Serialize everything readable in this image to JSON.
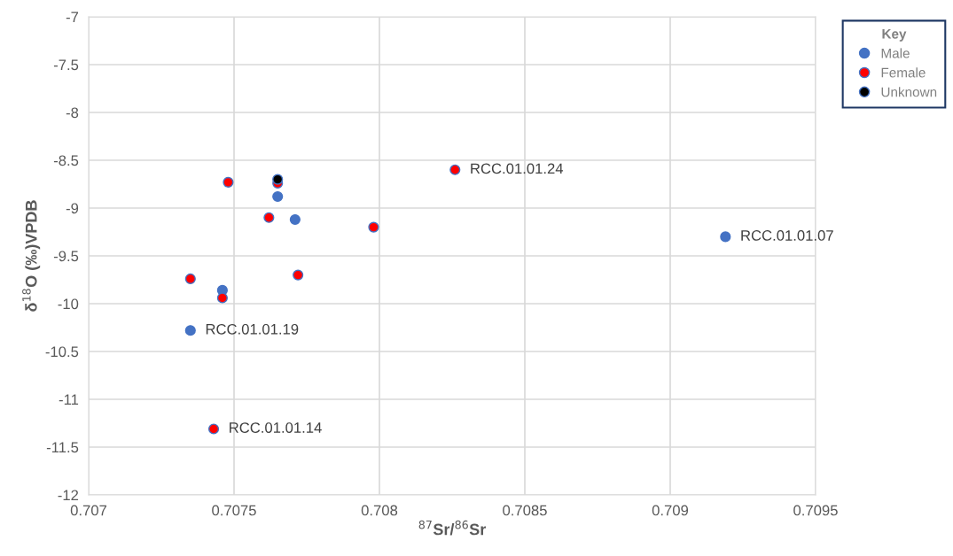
{
  "chart_data": {
    "type": "scatter",
    "xlabel": "$^{87}$Sr/$^{86}$Sr",
    "ylabel": "δ$^{18}$O (‰)VPDB",
    "legend_title": "Key",
    "legend": "right",
    "grid": true,
    "marker": "circle",
    "xlim": [
      0.707,
      0.7095
    ],
    "xticks": [
      0.707,
      0.7075,
      0.708,
      0.7085,
      0.709,
      0.7095
    ],
    "ylim": [
      -12,
      -7
    ],
    "yticks": [
      -12,
      -11.5,
      -11,
      -10.5,
      -10,
      -9.5,
      -9,
      -8.5,
      -8,
      -7.5,
      -7
    ],
    "series": [
      {
        "name": "Male",
        "color": "#4472c4",
        "x": [
          0.70735,
          0.70746,
          0.70765,
          0.70771,
          0.70919
        ],
        "values": [
          -10.28,
          -9.86,
          -8.88,
          -9.12,
          -9.3
        ]
      },
      {
        "name": "Female",
        "color": "#ff0000",
        "x": [
          0.70735,
          0.70748,
          0.70746,
          0.70762,
          0.70765,
          0.70772,
          0.70798,
          0.70826,
          0.70743
        ],
        "values": [
          -9.74,
          -8.73,
          -9.94,
          -9.1,
          -8.74,
          -9.7,
          -9.2,
          -8.6,
          -11.31
        ]
      },
      {
        "name": "Unknown",
        "color": "#000000",
        "x": [
          0.70765
        ],
        "values": [
          -8.7
        ]
      }
    ],
    "annotations": [
      {
        "text": "RCC.01.01.24",
        "x": 0.70826,
        "y": -8.6
      },
      {
        "text": "RCC.01.01.07",
        "x": 0.70919,
        "y": -9.3
      },
      {
        "text": "RCC.01.01.19",
        "x": 0.70735,
        "y": -10.28
      },
      {
        "text": "RCC.01.01.14",
        "x": 0.70743,
        "y": -11.31
      }
    ]
  }
}
